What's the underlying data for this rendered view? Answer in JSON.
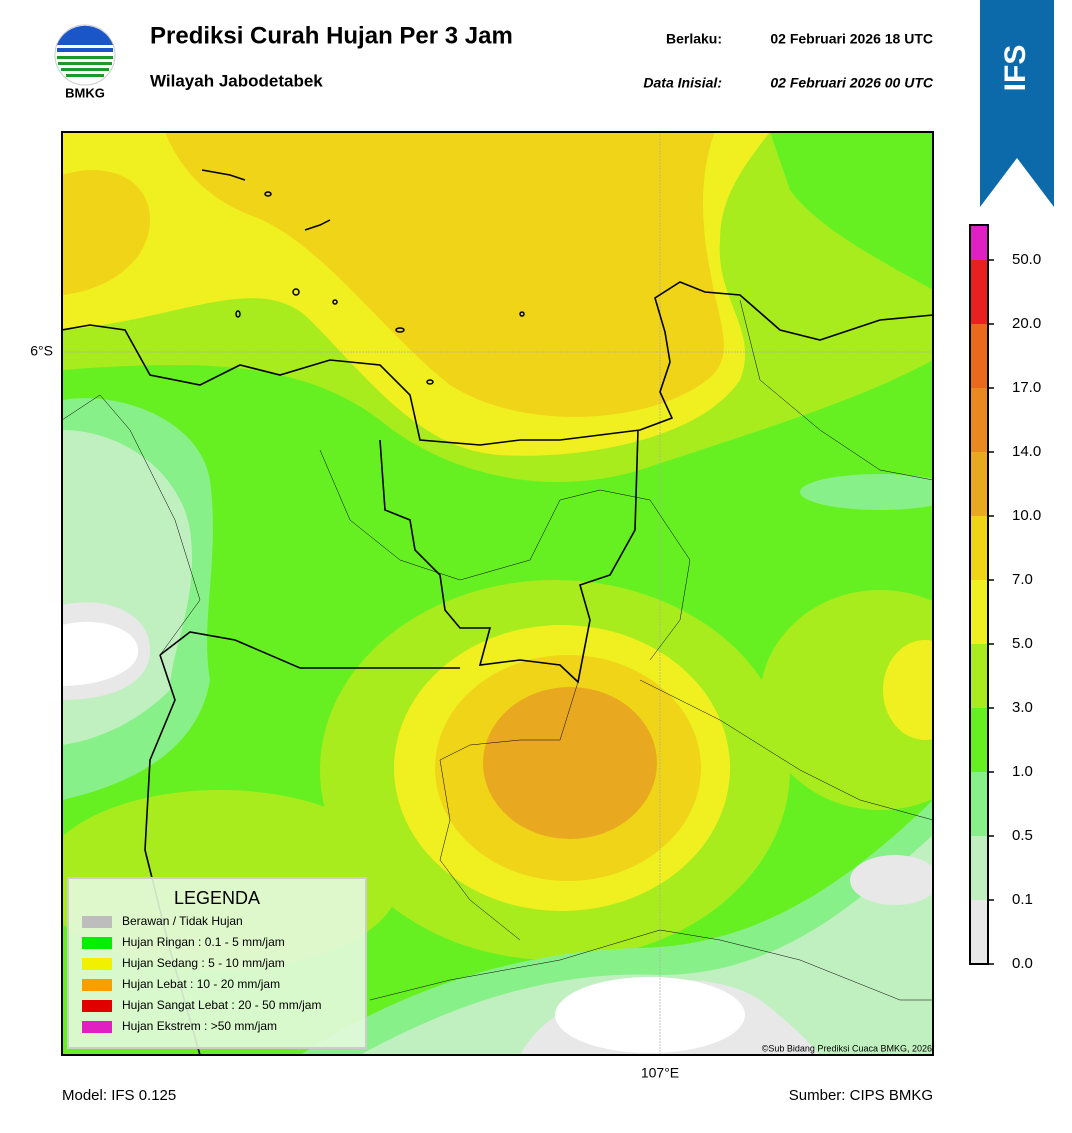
{
  "header": {
    "logo_text": "BMKG",
    "title": "Prediksi Curah Hujan Per 3 Jam",
    "subtitle": "Wilayah Jabodetabek",
    "valid_label": "Berlaku:",
    "valid_time": "02 Februari 2026 18 UTC",
    "init_label": "Data Inisial:",
    "init_time": "02 Februari 2026 00 UTC",
    "badge": "IFS"
  },
  "map": {
    "lat_label": "6°S",
    "lon_label": "107°E",
    "copyright": "©Sub Bidang Prediksi Cuaca BMKG, 2026"
  },
  "legend": {
    "title": "LEGENDA",
    "items": [
      {
        "label": "Berawan / Tidak Hujan",
        "color": "#bdbdbd"
      },
      {
        "label": "Hujan Ringan : 0.1 - 5 mm/jam",
        "color": "#00f000"
      },
      {
        "label": "Hujan Sedang : 5 - 10 mm/jam",
        "color": "#f0f000"
      },
      {
        "label": "Hujan Lebat : 10 - 20 mm/jam",
        "color": "#f5a000"
      },
      {
        "label": "Hujan Sangat Lebat : 20 - 50 mm/jam",
        "color": "#e00000"
      },
      {
        "label": "Hujan Ekstrem : >50 mm/jam",
        "color": "#e020c0"
      }
    ]
  },
  "colorbar": {
    "ticks": [
      {
        "value": 0,
        "label": "0.0"
      },
      0.1,
      0.5,
      {
        "value": 1,
        "label": "1.0"
      },
      {
        "value": 3,
        "label": "3.0"
      },
      {
        "value": 5,
        "label": "5.0"
      },
      {
        "value": 7,
        "label": "7.0"
      },
      {
        "value": 10,
        "label": "10.0"
      },
      {
        "value": 14,
        "label": "14.0"
      },
      {
        "value": 17,
        "label": "17.0"
      },
      {
        "value": 20,
        "label": "20.0"
      },
      {
        "value": 50,
        "label": "50.0"
      }
    ],
    "colors": [
      "#e8e8e8",
      "#c0f0c0",
      "#88f088",
      "#66f022",
      "#a8ec1e",
      "#f0f020",
      "#f0d418",
      "#e8a820",
      "#e88a20",
      "#e86a1a",
      "#e82020",
      "#e020c0"
    ]
  },
  "footer": {
    "model": "Model: IFS 0.125",
    "source": "Sumber: CIPS BMKG"
  }
}
